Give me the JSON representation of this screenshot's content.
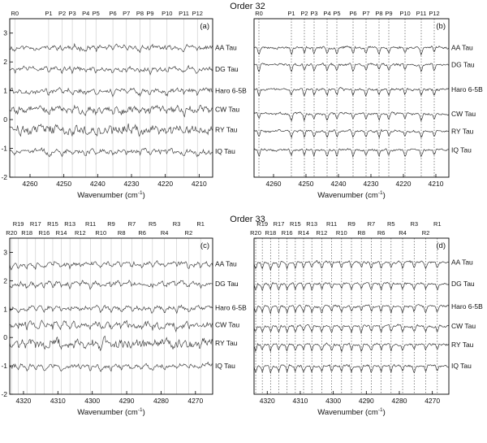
{
  "titles": {
    "top": "Order 32",
    "bottom": "Order 33"
  },
  "chart_data": [
    {
      "type": "line",
      "panel_label": "(a)",
      "xlabel": "Wavenumber (cm",
      "xlabel_sup": "-1",
      "xlabel_close": ")",
      "xlim": [
        4266,
        4206
      ],
      "ylim": [
        -2,
        3.5
      ],
      "xticks": [
        4260,
        4250,
        4240,
        4230,
        4220,
        4210
      ],
      "yticks": [
        -2,
        -1,
        0,
        1,
        2,
        3
      ],
      "series": [
        {
          "name": "AA Tau",
          "offset": 2.5
        },
        {
          "name": "DG Tau",
          "offset": 1.75
        },
        {
          "name": "Haro 6-5B",
          "offset": 1.0
        },
        {
          "name": "CW Tau",
          "offset": 0.35
        },
        {
          "name": "RY Tau",
          "offset": -0.35
        },
        {
          "name": "IQ Tau",
          "offset": -1.1
        }
      ],
      "line_markers": [
        {
          "label": "R0",
          "x": 4264.5,
          "row": 0
        },
        {
          "label": "P1",
          "x": 4254.5,
          "row": 0
        },
        {
          "label": "P2",
          "x": 4250.5,
          "row": 0
        },
        {
          "label": "P3",
          "x": 4247.5,
          "row": 0
        },
        {
          "label": "P4",
          "x": 4243.5,
          "row": 0
        },
        {
          "label": "P5",
          "x": 4240.5,
          "row": 0
        },
        {
          "label": "P6",
          "x": 4235.5,
          "row": 0
        },
        {
          "label": "P7",
          "x": 4231.5,
          "row": 0
        },
        {
          "label": "P8",
          "x": 4227.5,
          "row": 0
        },
        {
          "label": "P9",
          "x": 4224.5,
          "row": 0
        },
        {
          "label": "P10",
          "x": 4219.5,
          "row": 0
        },
        {
          "label": "P11",
          "x": 4214.5,
          "row": 0
        },
        {
          "label": "P12",
          "x": 4210.5,
          "row": 0
        }
      ]
    },
    {
      "type": "line",
      "panel_label": "(b)",
      "xlabel": "Wavenumber (cm",
      "xlabel_sup": "-1",
      "xlabel_close": ")",
      "xlim": [
        4266,
        4206
      ],
      "ylim": [
        -2,
        3.5
      ],
      "xticks": [
        4260,
        4250,
        4240,
        4230,
        4220,
        4210
      ],
      "yticks": [],
      "series": [
        {
          "name": "AA Tau",
          "offset": 2.5
        },
        {
          "name": "DG Tau",
          "offset": 1.9
        },
        {
          "name": "Haro 6-5B",
          "offset": 1.05
        },
        {
          "name": "CW Tau",
          "offset": 0.2
        },
        {
          "name": "RY Tau",
          "offset": -0.4
        },
        {
          "name": "IQ Tau",
          "offset": -1.05
        }
      ],
      "line_markers": [
        {
          "label": "R0",
          "x": 4264.5,
          "row": 0
        },
        {
          "label": "P1",
          "x": 4254.5,
          "row": 0
        },
        {
          "label": "P2",
          "x": 4250.5,
          "row": 0
        },
        {
          "label": "P3",
          "x": 4247.5,
          "row": 0
        },
        {
          "label": "P4",
          "x": 4243.5,
          "row": 0
        },
        {
          "label": "P5",
          "x": 4240.5,
          "row": 0
        },
        {
          "label": "P6",
          "x": 4235.5,
          "row": 0
        },
        {
          "label": "P7",
          "x": 4231.5,
          "row": 0
        },
        {
          "label": "P8",
          "x": 4227.5,
          "row": 0
        },
        {
          "label": "P9",
          "x": 4224.5,
          "row": 0
        },
        {
          "label": "P10",
          "x": 4219.5,
          "row": 0
        },
        {
          "label": "P11",
          "x": 4214.5,
          "row": 0
        },
        {
          "label": "P12",
          "x": 4210.5,
          "row": 0
        }
      ]
    },
    {
      "type": "line",
      "panel_label": "(c)",
      "xlabel": "Wavenumber (cm",
      "xlabel_sup": "-1",
      "xlabel_close": ")",
      "xlim": [
        4324,
        4265
      ],
      "ylim": [
        -2,
        3.5
      ],
      "xticks": [
        4320,
        4310,
        4300,
        4290,
        4280,
        4270
      ],
      "yticks": [
        -2,
        -1,
        0,
        1,
        2,
        3
      ],
      "series": [
        {
          "name": "AA Tau",
          "offset": 2.6
        },
        {
          "name": "DG Tau",
          "offset": 1.9
        },
        {
          "name": "Haro 6-5B",
          "offset": 1.05
        },
        {
          "name": "CW Tau",
          "offset": 0.45
        },
        {
          "name": "RY Tau",
          "offset": -0.2
        },
        {
          "name": "IQ Tau",
          "offset": -1.0
        }
      ],
      "line_markers": [
        {
          "label": "R19",
          "x": 4321.5,
          "row": 0
        },
        {
          "label": "R17",
          "x": 4316.5,
          "row": 0
        },
        {
          "label": "R15",
          "x": 4311.5,
          "row": 0
        },
        {
          "label": "R13",
          "x": 4306.5,
          "row": 0
        },
        {
          "label": "R11",
          "x": 4300.5,
          "row": 0
        },
        {
          "label": "R9",
          "x": 4294.5,
          "row": 0
        },
        {
          "label": "R7",
          "x": 4288.5,
          "row": 0
        },
        {
          "label": "R5",
          "x": 4282.5,
          "row": 0
        },
        {
          "label": "R3",
          "x": 4275.5,
          "row": 0
        },
        {
          "label": "R1",
          "x": 4268.5,
          "row": 0
        },
        {
          "label": "R20",
          "x": 4323.5,
          "row": 1
        },
        {
          "label": "R18",
          "x": 4319.0,
          "row": 1
        },
        {
          "label": "R16",
          "x": 4314.0,
          "row": 1
        },
        {
          "label": "R14",
          "x": 4309.0,
          "row": 1
        },
        {
          "label": "R12",
          "x": 4303.5,
          "row": 1
        },
        {
          "label": "R10",
          "x": 4297.5,
          "row": 1
        },
        {
          "label": "R8",
          "x": 4291.5,
          "row": 1
        },
        {
          "label": "R6",
          "x": 4285.5,
          "row": 1
        },
        {
          "label": "R4",
          "x": 4279.0,
          "row": 1
        },
        {
          "label": "R2",
          "x": 4272.0,
          "row": 1
        }
      ]
    },
    {
      "type": "line",
      "panel_label": "(d)",
      "xlabel": "Wavenumber (cm",
      "xlabel_sup": "-1",
      "xlabel_close": ")",
      "xlim": [
        4324,
        4265
      ],
      "ylim": [
        -2,
        3.5
      ],
      "xticks": [
        4320,
        4310,
        4300,
        4290,
        4280,
        4270
      ],
      "yticks": [],
      "series": [
        {
          "name": "AA Tau",
          "offset": 2.65
        },
        {
          "name": "DG Tau",
          "offset": 1.9
        },
        {
          "name": "Haro 6-5B",
          "offset": 1.1
        },
        {
          "name": "CW Tau",
          "offset": 0.4
        },
        {
          "name": "RY Tau",
          "offset": -0.25
        },
        {
          "name": "IQ Tau",
          "offset": -1.0
        }
      ],
      "line_markers": [
        {
          "label": "R19",
          "x": 4321.5,
          "row": 0
        },
        {
          "label": "R17",
          "x": 4316.5,
          "row": 0
        },
        {
          "label": "R15",
          "x": 4311.5,
          "row": 0
        },
        {
          "label": "R13",
          "x": 4306.5,
          "row": 0
        },
        {
          "label": "R11",
          "x": 4300.5,
          "row": 0
        },
        {
          "label": "R9",
          "x": 4294.5,
          "row": 0
        },
        {
          "label": "R7",
          "x": 4288.5,
          "row": 0
        },
        {
          "label": "R5",
          "x": 4282.5,
          "row": 0
        },
        {
          "label": "R3",
          "x": 4275.5,
          "row": 0
        },
        {
          "label": "R1",
          "x": 4268.5,
          "row": 0
        },
        {
          "label": "R20",
          "x": 4323.5,
          "row": 1
        },
        {
          "label": "R18",
          "x": 4319.0,
          "row": 1
        },
        {
          "label": "R16",
          "x": 4314.0,
          "row": 1
        },
        {
          "label": "R14",
          "x": 4309.0,
          "row": 1
        },
        {
          "label": "R12",
          "x": 4303.5,
          "row": 1
        },
        {
          "label": "R10",
          "x": 4297.5,
          "row": 1
        },
        {
          "label": "R8",
          "x": 4291.5,
          "row": 1
        },
        {
          "label": "R6",
          "x": 4285.5,
          "row": 1
        },
        {
          "label": "R4",
          "x": 4279.0,
          "row": 1
        },
        {
          "label": "R2",
          "x": 4272.0,
          "row": 1
        }
      ]
    }
  ]
}
